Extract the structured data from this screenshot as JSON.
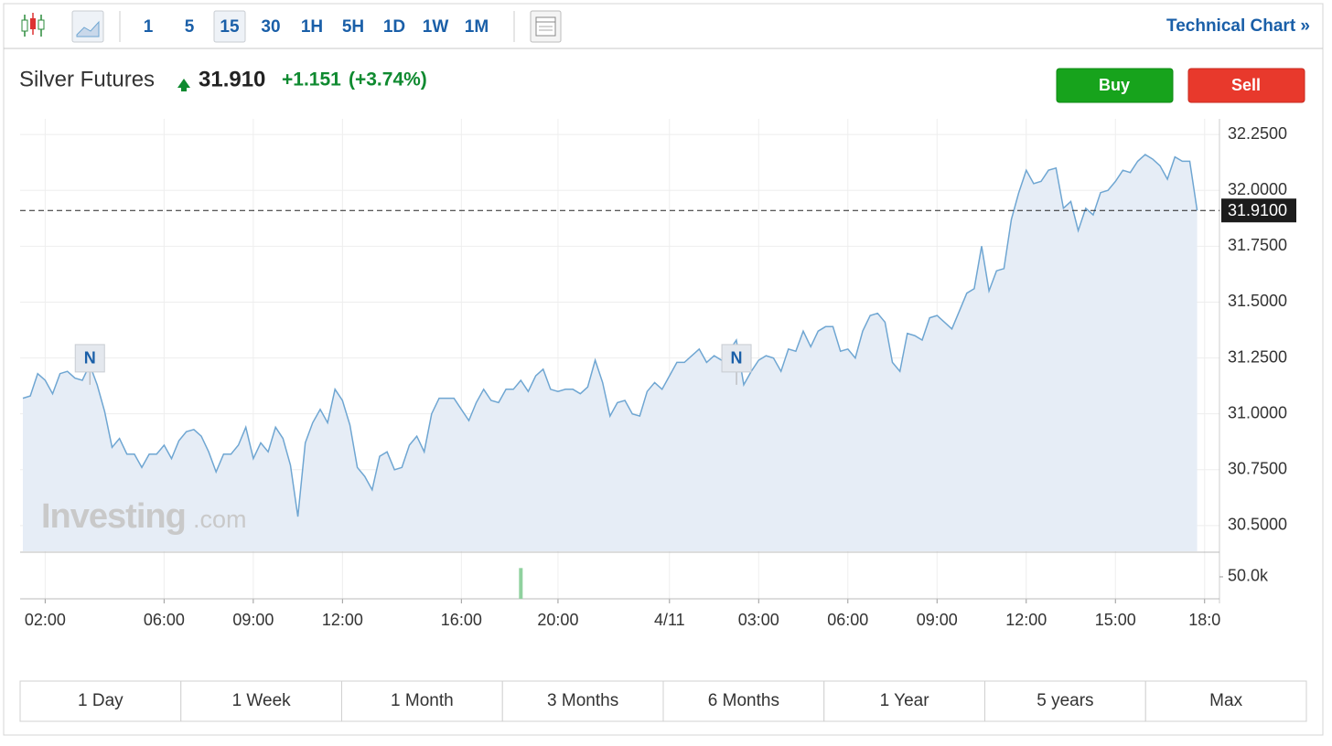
{
  "toolbar": {
    "intervals": [
      "1",
      "5",
      "15",
      "30",
      "1H",
      "5H",
      "1D",
      "1W",
      "1M"
    ],
    "active_interval": 2,
    "link": "Technical Chart »"
  },
  "quote": {
    "name": "Silver Futures",
    "price": "31.910",
    "change": "+1.151",
    "change_pct": "(+3.74%)"
  },
  "actions": {
    "buy": "Buy",
    "sell": "Sell"
  },
  "watermark": {
    "brand": "Investing",
    "suffix": ".com"
  },
  "chart_data": {
    "type": "line",
    "color": "#6fa6d2",
    "fill": "#e6edf6",
    "grid": true,
    "values": [
      31.07,
      31.08,
      31.18,
      31.15,
      31.09,
      31.18,
      31.19,
      31.16,
      31.15,
      31.22,
      31.13,
      31.01,
      30.85,
      30.89,
      30.82,
      30.82,
      30.76,
      30.82,
      30.82,
      30.86,
      30.8,
      30.88,
      30.92,
      30.93,
      30.9,
      30.83,
      30.74,
      30.82,
      30.82,
      30.86,
      30.94,
      30.8,
      30.87,
      30.83,
      30.94,
      30.89,
      30.77,
      30.54,
      30.87,
      30.96,
      31.02,
      30.96,
      31.11,
      31.06,
      30.95,
      30.76,
      30.72,
      30.66,
      30.81,
      30.83,
      30.75,
      30.76,
      30.86,
      30.9,
      30.83,
      31.0,
      31.07,
      31.07,
      31.07,
      31.02,
      30.97,
      31.05,
      31.11,
      31.06,
      31.05,
      31.11,
      31.11,
      31.15,
      31.1,
      31.17,
      31.2,
      31.11,
      31.1,
      31.11,
      31.11,
      31.09,
      31.12,
      31.24,
      31.14,
      30.99,
      31.05,
      31.06,
      31.0,
      30.99,
      31.1,
      31.14,
      31.11,
      31.17,
      31.23,
      31.23,
      31.26,
      31.29,
      31.23,
      31.26,
      31.24,
      31.28,
      31.33,
      31.13,
      31.19,
      31.24,
      31.26,
      31.25,
      31.19,
      31.29,
      31.28,
      31.37,
      31.3,
      31.37,
      31.39,
      31.39,
      31.28,
      31.29,
      31.25,
      31.37,
      31.44,
      31.45,
      31.41,
      31.23,
      31.19,
      31.36,
      31.35,
      31.33,
      31.43,
      31.44,
      31.41,
      31.38,
      31.46,
      31.54,
      31.56,
      31.75,
      31.55,
      31.64,
      31.65,
      31.87,
      31.99,
      32.09,
      32.03,
      32.04,
      32.09,
      32.1,
      31.92,
      31.95,
      31.82,
      31.92,
      31.89,
      31.99,
      32.0,
      32.04,
      32.09,
      32.08,
      32.13,
      32.16,
      32.14,
      32.11,
      32.05,
      32.15,
      32.13,
      32.13,
      31.91
    ],
    "xlim": [
      0,
      161
    ],
    "xticks": [
      {
        "value": 3,
        "label": "02:00"
      },
      {
        "value": 19,
        "label": "06:00"
      },
      {
        "value": 31,
        "label": "09:00"
      },
      {
        "value": 43,
        "label": "12:00"
      },
      {
        "value": 59,
        "label": "16:00"
      },
      {
        "value": 72,
        "label": "20:00"
      },
      {
        "value": 87,
        "label": "4/11"
      },
      {
        "value": 99,
        "label": "03:00"
      },
      {
        "value": 111,
        "label": "06:00"
      },
      {
        "value": 123,
        "label": "09:00"
      },
      {
        "value": 135,
        "label": "12:00"
      },
      {
        "value": 147,
        "label": "15:00"
      },
      {
        "value": 159,
        "label": "18:0"
      }
    ],
    "ylim": [
      30.385,
      32.32
    ],
    "yticks": [
      {
        "value": 30.5,
        "label": "30.5000"
      },
      {
        "value": 30.75,
        "label": "30.7500"
      },
      {
        "value": 31,
        "label": "31.0000"
      },
      {
        "value": 31.25,
        "label": "31.2500"
      },
      {
        "value": 31.5,
        "label": "31.5000"
      },
      {
        "value": 31.75,
        "label": "31.7500"
      },
      {
        "value": 32,
        "label": "32.0000"
      },
      {
        "value": 32.25,
        "label": "32.2500"
      }
    ],
    "last": {
      "value": 31.91,
      "label": "31.9100"
    },
    "annotations": [
      {
        "text": "N",
        "x": 10
      },
      {
        "text": "N",
        "x": 97
      }
    ],
    "volume": {
      "x": [
        67
      ],
      "values": [
        70000
      ],
      "color": "#8fd19e",
      "ylim": [
        0,
        104000
      ],
      "yticks": [
        {
          "value": 50000,
          "label": "50.0k"
        }
      ]
    }
  },
  "ranges": [
    "1 Day",
    "1 Week",
    "1 Month",
    "3 Months",
    "6 Months",
    "1 Year",
    "5 years",
    "Max"
  ]
}
